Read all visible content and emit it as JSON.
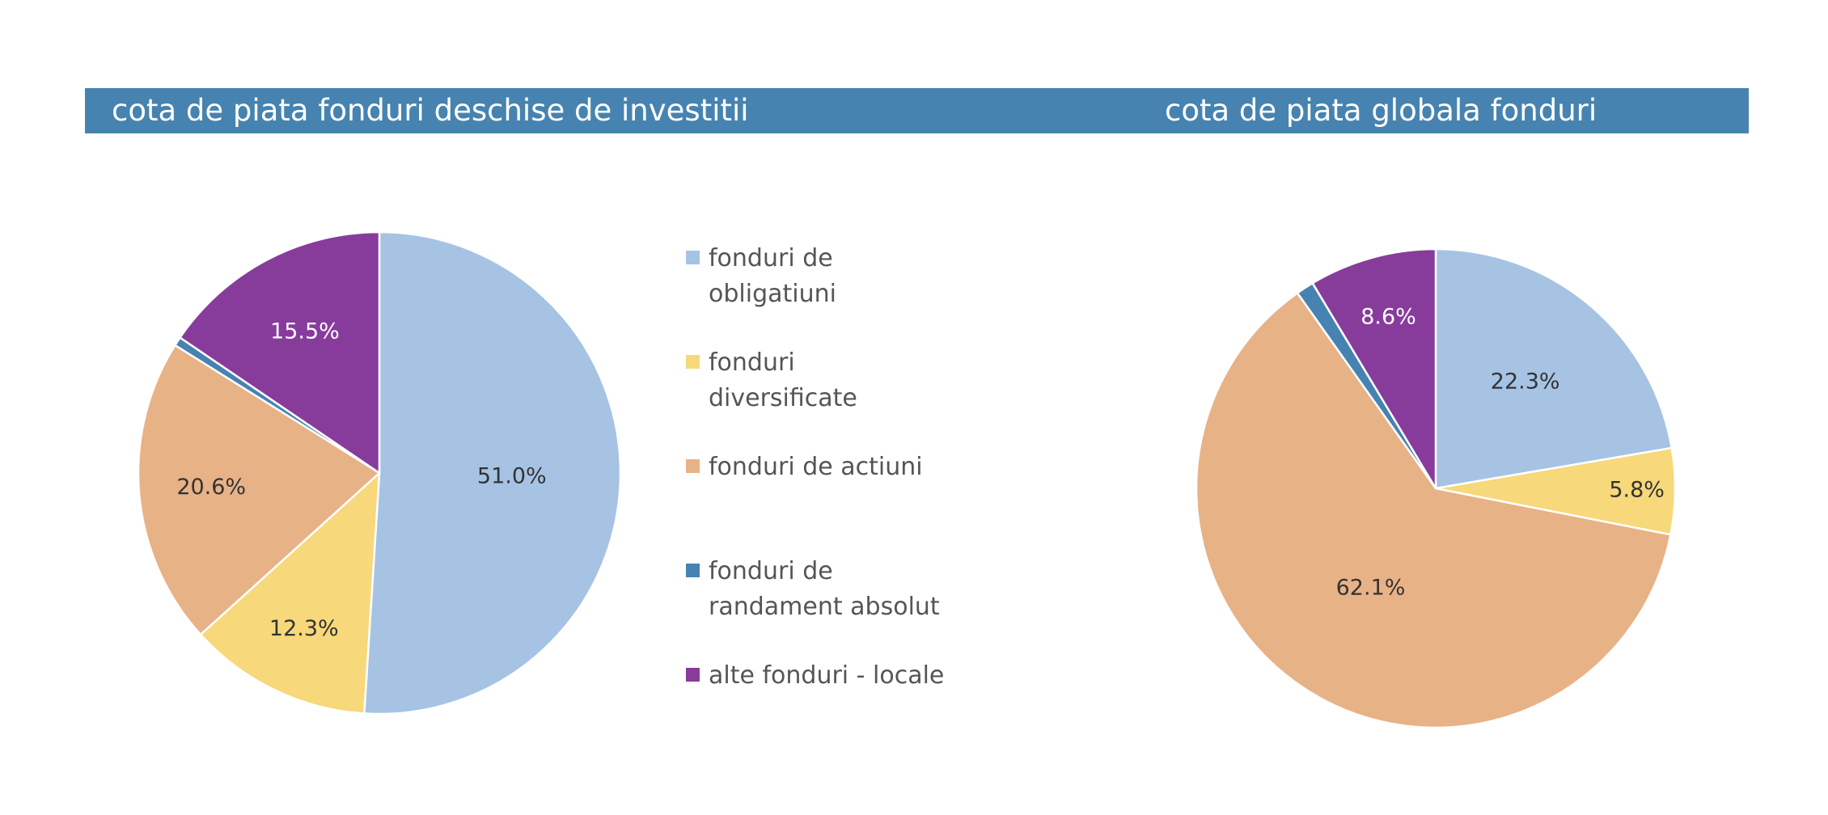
{
  "header": {
    "left_title": "cota de piata fonduri deschise de investitii",
    "right_title": "cota de piata globala fonduri",
    "band_color": "#4683b0"
  },
  "legend": {
    "items": [
      {
        "label": "fonduri de obligatiuni",
        "color": "#a6c3e4"
      },
      {
        "label": "fonduri diversificate",
        "color": "#f7d87a"
      },
      {
        "label": "fonduri de actiuni",
        "color": "#e8b287"
      },
      {
        "label": "fonduri de randament absolut",
        "color": "#4683b0"
      },
      {
        "label": "alte fonduri - locale",
        "color": "#873c9c"
      }
    ]
  },
  "chart_data": [
    {
      "type": "pie",
      "title": "cota de piata fonduri deschise de investitii",
      "categories": [
        "fonduri de obligatiuni",
        "fonduri diversificate",
        "fonduri de actiuni",
        "fonduri de randament absolut",
        "alte fonduri - locale"
      ],
      "values": [
        51.0,
        12.3,
        20.6,
        0.6,
        15.5
      ],
      "labels": [
        "51.0%",
        "12.3%",
        "20.6%",
        "",
        "15.5%"
      ],
      "label_colors": [
        "#333333",
        "#333333",
        "#333333",
        "#ffffff",
        "#ffffff"
      ],
      "colors": [
        "#a6c3e4",
        "#f7d87a",
        "#e8b287",
        "#4683b0",
        "#873c9c"
      ],
      "start": "12 o'clock, clockwise"
    },
    {
      "type": "pie",
      "title": "cota de piata globala fonduri",
      "categories": [
        "fonduri de obligatiuni",
        "fonduri diversificate",
        "fonduri de actiuni",
        "fonduri de randament absolut",
        "alte fonduri - locale"
      ],
      "values": [
        22.3,
        5.8,
        62.1,
        1.2,
        8.6
      ],
      "labels": [
        "22.3%",
        "5.8%",
        "62.1%",
        "",
        "8.6%"
      ],
      "label_colors": [
        "#333333",
        "#333333",
        "#333333",
        "#ffffff",
        "#ffffff"
      ],
      "colors": [
        "#a6c3e4",
        "#f7d87a",
        "#e8b287",
        "#4683b0",
        "#873c9c"
      ],
      "start": "12 o'clock, clockwise"
    }
  ]
}
